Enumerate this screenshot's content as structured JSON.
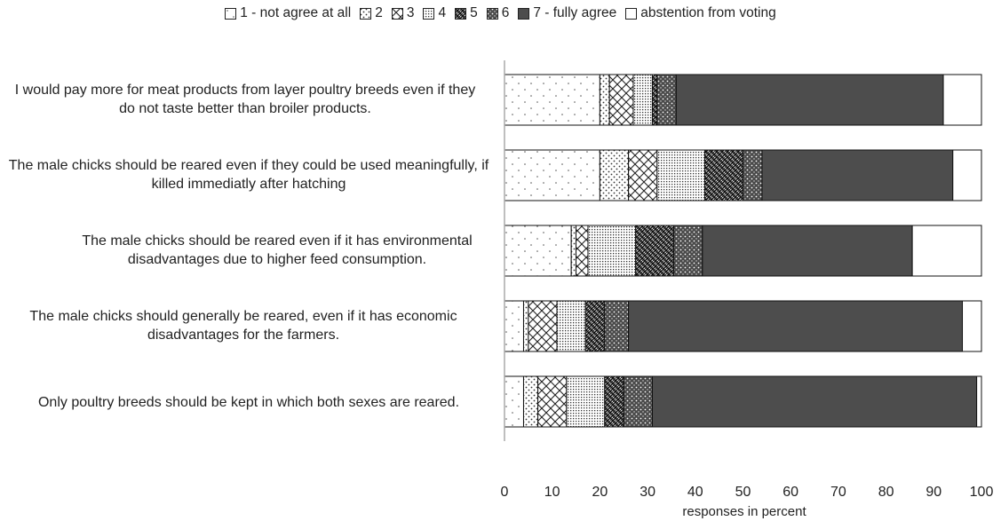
{
  "chart_data": {
    "type": "bar",
    "orientation": "horizontal",
    "stacked": true,
    "categories": [
      "I would pay more for meat products from layer poultry breeds even if they do not taste better than broiler products.",
      "The male chicks should be reared even if they could be used meaningfully, if killed immediatly after hatching",
      "The male chicks should be reared even if it has environmental disadvantages due to higher feed consumption.",
      "The male chicks should generally be reared, even if it has economic disadvantages for the farmers.",
      "Only poultry breeds should be kept in which both sexes are reared."
    ],
    "series": [
      {
        "name": "1 - not agree at all",
        "values": [
          20,
          20,
          14,
          4,
          4
        ]
      },
      {
        "name": "2",
        "values": [
          2,
          6,
          1,
          1,
          3
        ]
      },
      {
        "name": "3",
        "values": [
          5,
          6,
          2.5,
          6,
          6
        ]
      },
      {
        "name": "4",
        "values": [
          4,
          10,
          10,
          6,
          8
        ]
      },
      {
        "name": "5",
        "values": [
          1,
          8,
          8,
          4,
          4
        ]
      },
      {
        "name": "6",
        "values": [
          4,
          4,
          6,
          5,
          6
        ]
      },
      {
        "name": "7 - fully agree",
        "values": [
          56,
          40,
          44,
          70,
          68
        ]
      },
      {
        "name": "abstention from voting",
        "values": [
          8,
          6,
          14.5,
          4,
          1
        ]
      }
    ],
    "xlabel": "responses in percent",
    "ylabel": "",
    "xlim": [
      0,
      100
    ],
    "xticks": [
      0,
      10,
      20,
      30,
      40,
      50,
      60,
      70,
      80,
      90,
      100
    ],
    "legend_position": "top",
    "grid": false
  }
}
